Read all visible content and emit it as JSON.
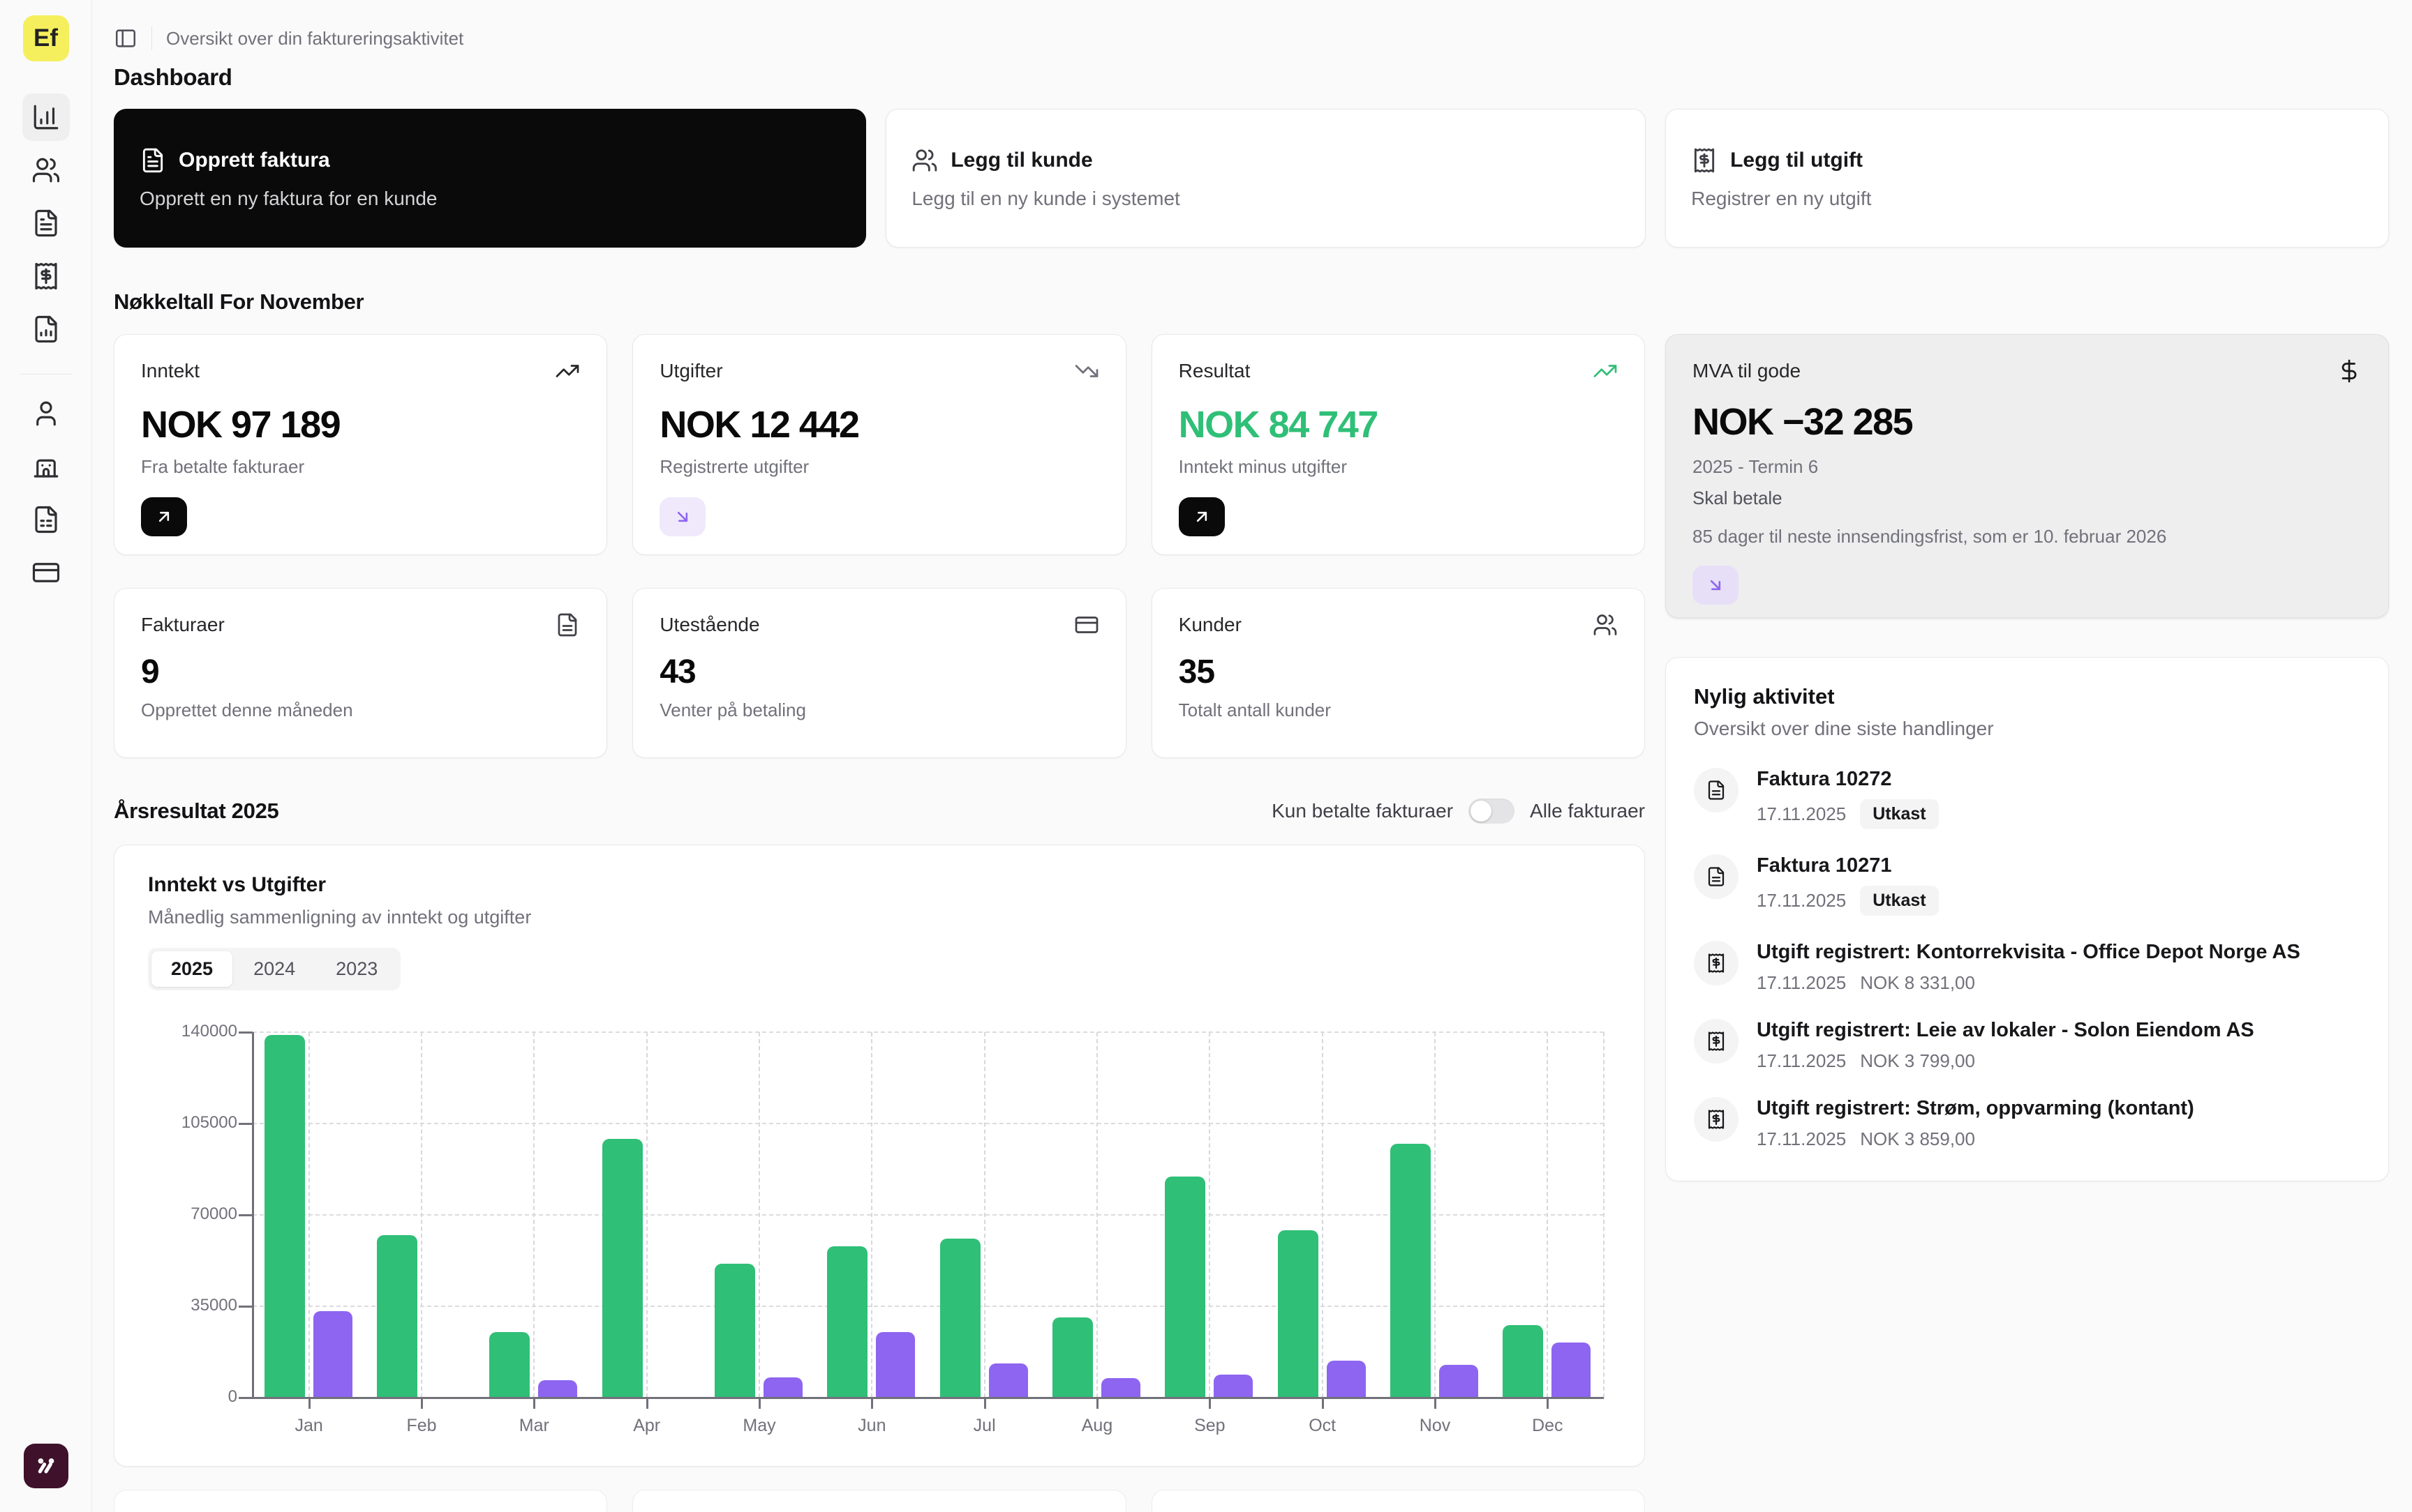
{
  "app": {
    "logo_text": "Ef"
  },
  "sidebar": {
    "icons": [
      "chart-column",
      "users",
      "file-text",
      "receipt-dollar",
      "file-chart",
      "user",
      "building",
      "notebook-text",
      "credit-card"
    ],
    "active_icon": "chart-column"
  },
  "header": {
    "subtitle": "Oversikt over din faktureringsaktivitet",
    "title": "Dashboard"
  },
  "actions": [
    {
      "title": "Opprett faktura",
      "subtitle": "Opprett en ny faktura for en kunde"
    },
    {
      "title": "Legg til kunde",
      "subtitle": "Legg til en ny kunde i systemet"
    },
    {
      "title": "Legg til utgift",
      "subtitle": "Registrer en ny utgift"
    }
  ],
  "key_figures": {
    "heading": "Nøkkeltall For November",
    "cards": [
      {
        "label": "Inntekt",
        "value": "NOK 97 189",
        "subtitle": "Fra betalte fakturaer"
      },
      {
        "label": "Utgifter",
        "value": "NOK 12 442",
        "subtitle": "Registrerte utgifter"
      },
      {
        "label": "Resultat",
        "value": "NOK 84 747",
        "subtitle": "Inntekt minus utgifter"
      }
    ],
    "mva": {
      "label": "MVA til gode",
      "value": "NOK −32 285",
      "period": "2025 - Termin 6",
      "status": "Skal betale",
      "deadline": "85 dager til neste innsendingsfrist, som er 10. februar 2026"
    }
  },
  "counts": [
    {
      "label": "Fakturaer",
      "value": "9",
      "subtitle": "Opprettet denne måneden"
    },
    {
      "label": "Utestående",
      "value": "43",
      "subtitle": "Venter på betaling"
    },
    {
      "label": "Kunder",
      "value": "35",
      "subtitle": "Totalt antall kunder"
    }
  ],
  "year_section": {
    "heading": "Årsresultat 2025",
    "toggle_left": "Kun betalte fakturaer",
    "toggle_right": "Alle fakturaer",
    "toggle_state": "off"
  },
  "chart_card": {
    "title": "Inntekt vs Utgifter",
    "subtitle": "Månedlig sammenligning av inntekt og utgifter",
    "tabs": [
      "2025",
      "2024",
      "2023"
    ],
    "active_tab": "2025"
  },
  "chart_data": {
    "type": "bar",
    "title": "Inntekt vs Utgifter",
    "categories": [
      "Jan",
      "Feb",
      "Mar",
      "Apr",
      "May",
      "Jun",
      "Jul",
      "Aug",
      "Sep",
      "Oct",
      "Nov",
      "Dec"
    ],
    "series": [
      {
        "name": "Inntekt",
        "color": "#2fbf77",
        "values": [
          138800,
          62300,
          25200,
          99000,
          51200,
          57900,
          61000,
          30800,
          84700,
          64100,
          97189,
          27800
        ]
      },
      {
        "name": "Utgifter",
        "color": "#8d65f1",
        "values": [
          33100,
          0,
          6800,
          0,
          7800,
          25200,
          13200,
          7600,
          8900,
          14200,
          12442,
          21200
        ]
      }
    ],
    "ylim": [
      0,
      140000
    ],
    "yticks": [
      0,
      35000,
      70000,
      105000,
      140000
    ],
    "grid": "dashed",
    "legend": "none"
  },
  "activity": {
    "title": "Nylig aktivitet",
    "subtitle": "Oversikt over dine siste handlinger",
    "items": [
      {
        "type": "invoice",
        "title": "Faktura 10272",
        "date": "17.11.2025",
        "badge": "Utkast"
      },
      {
        "type": "invoice",
        "title": "Faktura 10271",
        "date": "17.11.2025",
        "badge": "Utkast"
      },
      {
        "type": "expense",
        "title": "Utgift registrert: Kontorrekvisita - Office Depot Norge AS",
        "date": "17.11.2025",
        "amount": "NOK 8 331,00"
      },
      {
        "type": "expense",
        "title": "Utgift registrert: Leie av lokaler - Solon Eiendom AS",
        "date": "17.11.2025",
        "amount": "NOK 3 799,00"
      },
      {
        "type": "expense",
        "title": "Utgift registrert: Strøm, oppvarming (kontant)",
        "date": "17.11.2025",
        "amount": "NOK 3 859,00"
      }
    ]
  },
  "colors": {
    "income_green": "#2fbf77",
    "expense_purple": "#8d65f1",
    "chip_purple_bg": "#efe9fb",
    "logo_yellow": "#f5ef5d",
    "brand_plum": "#3f112b",
    "dark": "#0a0a0a",
    "muted_text": "#71717a",
    "mva_bg": "#eeeeef"
  }
}
